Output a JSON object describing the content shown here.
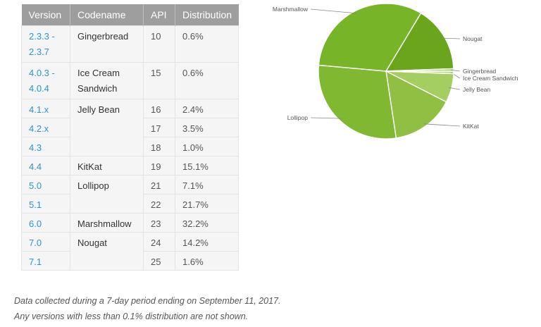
{
  "table": {
    "headers": [
      "Version",
      "Codename",
      "API",
      "Distribution"
    ],
    "rows": [
      {
        "version": "2.3.3 -\n2.3.7",
        "codename": "Gingerbread",
        "api": "10",
        "distribution": "0.6%"
      },
      {
        "version": "4.0.3 -\n4.0.4",
        "codename": "Ice Cream\nSandwich",
        "api": "15",
        "distribution": "0.6%"
      },
      {
        "version": "4.1.x",
        "codename": "Jelly Bean",
        "api": "16",
        "distribution": "2.4%"
      },
      {
        "version": "4.2.x",
        "codename": "",
        "api": "17",
        "distribution": "3.5%"
      },
      {
        "version": "4.3",
        "codename": "",
        "api": "18",
        "distribution": "1.0%"
      },
      {
        "version": "4.4",
        "codename": "KitKat",
        "api": "19",
        "distribution": "15.1%"
      },
      {
        "version": "5.0",
        "codename": "Lollipop",
        "api": "21",
        "distribution": "7.1%"
      },
      {
        "version": "5.1",
        "codename": "",
        "api": "22",
        "distribution": "21.7%"
      },
      {
        "version": "6.0",
        "codename": "Marshmallow",
        "api": "23",
        "distribution": "32.2%"
      },
      {
        "version": "7.0",
        "codename": "Nougat",
        "api": "24",
        "distribution": "14.2%"
      },
      {
        "version": "7.1",
        "codename": "",
        "api": "25",
        "distribution": "1.6%"
      }
    ]
  },
  "footnotes": {
    "line1": "Data collected during a 7-day period ending on September 11, 2017.",
    "line2": "Any versions with less than 0.1% distribution are not shown."
  },
  "chart_data": {
    "type": "pie",
    "title": "",
    "slices": [
      {
        "label": "Nougat",
        "value": 15.8,
        "color": "#6aa51c"
      },
      {
        "label": "Gingerbread",
        "value": 0.6,
        "color": "#a9d26a"
      },
      {
        "label": "Ice Cream Sandwich",
        "value": 0.6,
        "color": "#b9dc82"
      },
      {
        "label": "Jelly Bean",
        "value": 6.9,
        "color": "#a4cd62"
      },
      {
        "label": "KitKat",
        "value": 15.1,
        "color": "#8fc043"
      },
      {
        "label": "Lollipop",
        "value": 28.8,
        "color": "#80b832"
      },
      {
        "label": "Marshmallow",
        "value": 32.2,
        "color": "#78b428"
      }
    ]
  }
}
